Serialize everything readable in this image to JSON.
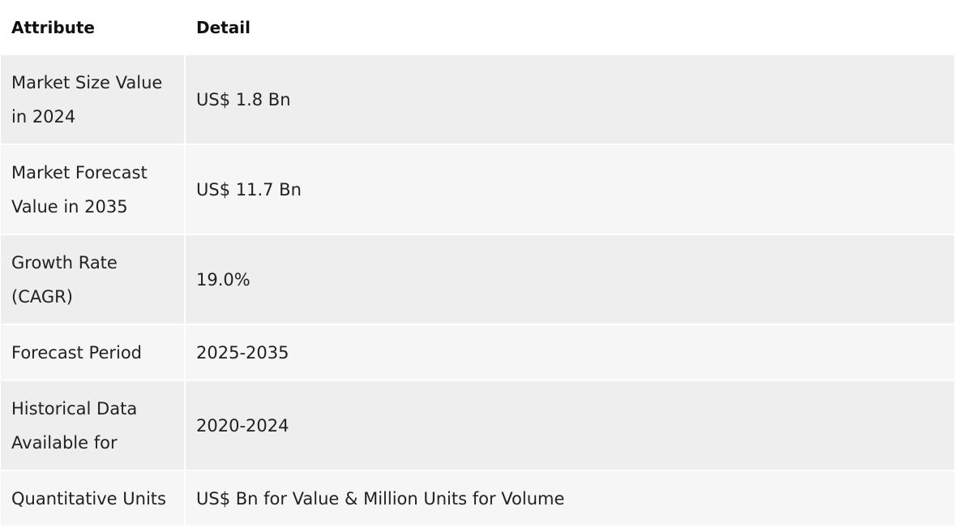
{
  "table": {
    "headers": [
      "Attribute",
      "Detail"
    ],
    "rows": [
      {
        "attribute": "Market Size Value in 2024",
        "detail": "US$ 1.8 Bn"
      },
      {
        "attribute": "Market Forecast Value in 2035",
        "detail": "US$ 11.7 Bn"
      },
      {
        "attribute": "Growth Rate (CAGR)",
        "detail": "19.0%"
      },
      {
        "attribute": "Forecast Period",
        "detail": "2025-2035"
      },
      {
        "attribute": "Historical Data Available for",
        "detail": "2020-2024"
      },
      {
        "attribute": "Quantitative Units",
        "detail": "US$ Bn for Value & Million Units for Volume"
      }
    ]
  }
}
